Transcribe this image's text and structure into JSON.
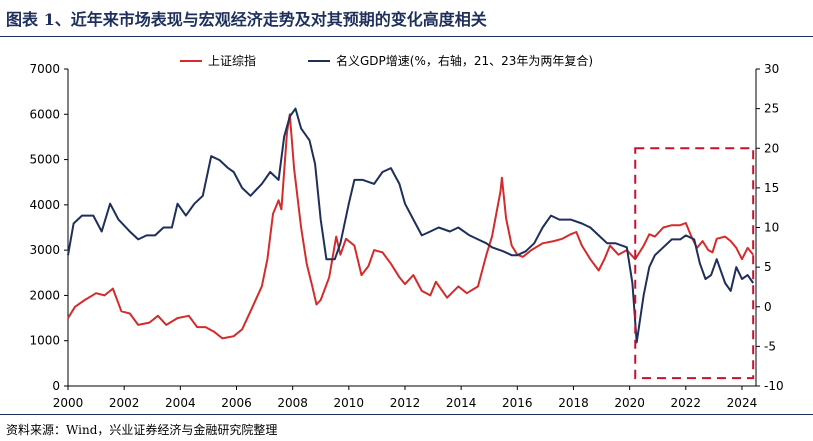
{
  "header": {
    "title": "图表 1、近年来市场表现与宏观经济走势及对其预期的变化高度相关"
  },
  "footer": {
    "source": "资料来源：Wind，兴业证券经济与金融研究院整理"
  },
  "colors": {
    "shanghai": "#d42b2b",
    "gdp": "#1f2f5c",
    "highlight": "#c8102e"
  },
  "chart_data": {
    "type": "line",
    "xlim": [
      2000,
      2024.5
    ],
    "x_ticks": [
      "2000",
      "2002",
      "2004",
      "2006",
      "2008",
      "2010",
      "2012",
      "2014",
      "2016",
      "2018",
      "2020",
      "2022",
      "2024"
    ],
    "y_left": {
      "lim": [
        0,
        7000
      ],
      "ticks": [
        "0",
        "1000",
        "2000",
        "3000",
        "4000",
        "5000",
        "6000",
        "7000"
      ]
    },
    "y_right": {
      "lim": [
        -10,
        30
      ],
      "ticks": [
        "-10",
        "-5",
        "0",
        "5",
        "10",
        "15",
        "20",
        "25",
        "30"
      ]
    },
    "legend_position": "top-center",
    "series": [
      {
        "name": "上证综指",
        "axis": "left",
        "points": [
          [
            2000.0,
            1500
          ],
          [
            2000.25,
            1750
          ],
          [
            2000.6,
            1900
          ],
          [
            2001.0,
            2050
          ],
          [
            2001.3,
            2000
          ],
          [
            2001.6,
            2150
          ],
          [
            2001.9,
            1650
          ],
          [
            2002.2,
            1600
          ],
          [
            2002.5,
            1350
          ],
          [
            2002.9,
            1400
          ],
          [
            2003.2,
            1550
          ],
          [
            2003.5,
            1350
          ],
          [
            2003.9,
            1500
          ],
          [
            2004.3,
            1550
          ],
          [
            2004.6,
            1300
          ],
          [
            2004.9,
            1300
          ],
          [
            2005.2,
            1200
          ],
          [
            2005.5,
            1050
          ],
          [
            2005.9,
            1100
          ],
          [
            2006.2,
            1250
          ],
          [
            2006.5,
            1650
          ],
          [
            2006.9,
            2200
          ],
          [
            2007.1,
            2800
          ],
          [
            2007.3,
            3800
          ],
          [
            2007.5,
            4100
          ],
          [
            2007.6,
            3900
          ],
          [
            2007.8,
            5600
          ],
          [
            2007.9,
            6000
          ],
          [
            2008.05,
            4800
          ],
          [
            2008.3,
            3500
          ],
          [
            2008.5,
            2700
          ],
          [
            2008.7,
            2200
          ],
          [
            2008.85,
            1800
          ],
          [
            2009.0,
            1900
          ],
          [
            2009.3,
            2400
          ],
          [
            2009.55,
            3300
          ],
          [
            2009.7,
            2900
          ],
          [
            2009.9,
            3250
          ],
          [
            2010.2,
            3100
          ],
          [
            2010.45,
            2450
          ],
          [
            2010.7,
            2650
          ],
          [
            2010.9,
            3000
          ],
          [
            2011.2,
            2950
          ],
          [
            2011.5,
            2700
          ],
          [
            2011.8,
            2400
          ],
          [
            2012.0,
            2250
          ],
          [
            2012.3,
            2450
          ],
          [
            2012.6,
            2100
          ],
          [
            2012.9,
            2000
          ],
          [
            2013.1,
            2300
          ],
          [
            2013.5,
            1950
          ],
          [
            2013.9,
            2200
          ],
          [
            2014.2,
            2050
          ],
          [
            2014.6,
            2200
          ],
          [
            2014.9,
            2900
          ],
          [
            2015.1,
            3300
          ],
          [
            2015.4,
            4300
          ],
          [
            2015.45,
            4600
          ],
          [
            2015.6,
            3700
          ],
          [
            2015.8,
            3100
          ],
          [
            2016.0,
            2900
          ],
          [
            2016.2,
            2850
          ],
          [
            2016.5,
            3000
          ],
          [
            2016.9,
            3150
          ],
          [
            2017.3,
            3200
          ],
          [
            2017.6,
            3250
          ],
          [
            2017.9,
            3350
          ],
          [
            2018.1,
            3400
          ],
          [
            2018.3,
            3100
          ],
          [
            2018.6,
            2800
          ],
          [
            2018.9,
            2550
          ],
          [
            2019.1,
            2800
          ],
          [
            2019.3,
            3100
          ],
          [
            2019.6,
            2900
          ],
          [
            2019.9,
            3000
          ],
          [
            2020.2,
            2800
          ],
          [
            2020.5,
            3100
          ],
          [
            2020.7,
            3350
          ],
          [
            2020.9,
            3300
          ],
          [
            2021.2,
            3500
          ],
          [
            2021.5,
            3550
          ],
          [
            2021.8,
            3550
          ],
          [
            2022.0,
            3600
          ],
          [
            2022.2,
            3300
          ],
          [
            2022.4,
            3050
          ],
          [
            2022.6,
            3200
          ],
          [
            2022.8,
            3000
          ],
          [
            2022.95,
            2950
          ],
          [
            2023.1,
            3250
          ],
          [
            2023.4,
            3300
          ],
          [
            2023.6,
            3200
          ],
          [
            2023.8,
            3050
          ],
          [
            2024.0,
            2800
          ],
          [
            2024.2,
            3050
          ],
          [
            2024.4,
            2900
          ]
        ]
      },
      {
        "name": "名义GDP增速(%，右轴，21、23年为两年复合)",
        "axis": "right",
        "points": [
          [
            2000.0,
            6.5
          ],
          [
            2000.2,
            10.5
          ],
          [
            2000.5,
            11.5
          ],
          [
            2000.9,
            11.5
          ],
          [
            2001.2,
            9.5
          ],
          [
            2001.5,
            13
          ],
          [
            2001.8,
            11
          ],
          [
            2002.2,
            9.5
          ],
          [
            2002.5,
            8.5
          ],
          [
            2002.8,
            9
          ],
          [
            2003.1,
            9
          ],
          [
            2003.4,
            10
          ],
          [
            2003.7,
            10
          ],
          [
            2003.9,
            13
          ],
          [
            2004.2,
            11.5
          ],
          [
            2004.5,
            13
          ],
          [
            2004.8,
            14
          ],
          [
            2005.1,
            19
          ],
          [
            2005.4,
            18.5
          ],
          [
            2005.7,
            17.5
          ],
          [
            2005.9,
            17
          ],
          [
            2006.2,
            15
          ],
          [
            2006.5,
            14
          ],
          [
            2006.9,
            15.5
          ],
          [
            2007.2,
            17
          ],
          [
            2007.5,
            16
          ],
          [
            2007.7,
            21.5
          ],
          [
            2007.9,
            24
          ],
          [
            2008.1,
            25
          ],
          [
            2008.3,
            22.5
          ],
          [
            2008.6,
            21
          ],
          [
            2008.8,
            18
          ],
          [
            2009.0,
            11
          ],
          [
            2009.2,
            6
          ],
          [
            2009.5,
            6
          ],
          [
            2009.7,
            8
          ],
          [
            2010.0,
            13
          ],
          [
            2010.2,
            16
          ],
          [
            2010.5,
            16
          ],
          [
            2010.9,
            15.5
          ],
          [
            2011.2,
            17
          ],
          [
            2011.5,
            17.5
          ],
          [
            2011.8,
            15.5
          ],
          [
            2012.0,
            13
          ],
          [
            2012.3,
            11
          ],
          [
            2012.6,
            9
          ],
          [
            2012.9,
            9.5
          ],
          [
            2013.2,
            10
          ],
          [
            2013.6,
            9.5
          ],
          [
            2013.9,
            10
          ],
          [
            2014.3,
            9
          ],
          [
            2014.6,
            8.5
          ],
          [
            2014.9,
            8
          ],
          [
            2015.1,
            7.5
          ],
          [
            2015.5,
            7
          ],
          [
            2015.8,
            6.5
          ],
          [
            2016.0,
            6.5
          ],
          [
            2016.3,
            7
          ],
          [
            2016.6,
            8
          ],
          [
            2016.9,
            10
          ],
          [
            2017.2,
            11.5
          ],
          [
            2017.5,
            11
          ],
          [
            2017.9,
            11
          ],
          [
            2018.3,
            10.5
          ],
          [
            2018.6,
            10
          ],
          [
            2018.9,
            9
          ],
          [
            2019.2,
            8
          ],
          [
            2019.5,
            8
          ],
          [
            2019.9,
            7.5
          ],
          [
            2020.1,
            3
          ],
          [
            2020.25,
            -4.5
          ],
          [
            2020.5,
            1.5
          ],
          [
            2020.7,
            5
          ],
          [
            2020.9,
            6.5
          ],
          [
            2021.2,
            7.5
          ],
          [
            2021.5,
            8.5
          ],
          [
            2021.8,
            8.5
          ],
          [
            2022.0,
            9
          ],
          [
            2022.3,
            8.5
          ],
          [
            2022.5,
            5.5
          ],
          [
            2022.7,
            3.5
          ],
          [
            2022.9,
            4
          ],
          [
            2023.1,
            6
          ],
          [
            2023.4,
            3
          ],
          [
            2023.6,
            2
          ],
          [
            2023.8,
            5
          ],
          [
            2024.0,
            3.5
          ],
          [
            2024.2,
            4
          ],
          [
            2024.4,
            3
          ]
        ]
      }
    ],
    "annotations": [
      {
        "type": "dashed-box",
        "x": [
          2020.2,
          2024.4
        ],
        "y_right": [
          -9,
          20
        ]
      }
    ]
  }
}
